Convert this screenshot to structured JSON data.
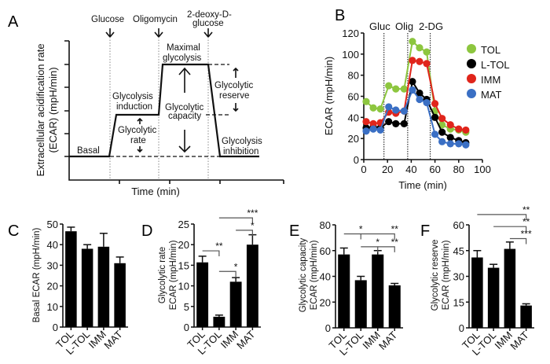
{
  "panel_labels": [
    "A",
    "B",
    "C",
    "D",
    "E",
    "F"
  ],
  "chart_data": [
    {
      "panel": "A",
      "type": "line",
      "ylabel_1": "Extracellular acidification rate",
      "ylabel_2": "(ECAR) (mpH/min)",
      "xlabel": "Time (min)",
      "injections": [
        "Glucose",
        "Oligomycin",
        "2-deoxy-D-",
        "glucose"
      ],
      "annotations": {
        "basal": "Basal",
        "induction_1": "Glycolysis",
        "induction_2": "induction",
        "rate_1": "Glycolytic",
        "rate_2": "rate",
        "max_1": "Maximal",
        "max_2": "glycolysis",
        "capacity_1": "Glycolytic",
        "capacity_2": "capacity",
        "reserve_1": "Glycolytic",
        "reserve_2": "reserve",
        "inhibition_1": "Glycolysis",
        "inhibition_2": "inhibition"
      }
    },
    {
      "panel": "B",
      "type": "line",
      "ylabel": "ECAR (mpH/min)",
      "xlabel": "Time (min)",
      "xlim": [
        0,
        100
      ],
      "ylim": [
        0,
        120
      ],
      "xticks": [
        "0",
        "20",
        "40",
        "60",
        "80",
        "100"
      ],
      "yticks": [
        "0",
        "20",
        "40",
        "60",
        "80",
        "100",
        "120"
      ],
      "injection_labels": [
        "Gluc",
        "Olig",
        "2-DG"
      ],
      "injection_times": [
        17,
        37,
        56
      ],
      "x": [
        2,
        8,
        14,
        21,
        27,
        34,
        41,
        47,
        53,
        60,
        66,
        73,
        80,
        86
      ],
      "legend_position": "top-right",
      "series": [
        {
          "name": "TOL",
          "color": "#8dc63f",
          "values": [
            55,
            49,
            48,
            70,
            67,
            67,
            112,
            106,
            102,
            46,
            33,
            29,
            28,
            26
          ]
        },
        {
          "name": "L-TOL",
          "color": "#000000",
          "values": [
            30,
            31,
            30,
            36,
            34,
            34,
            74,
            63,
            57,
            40,
            26,
            21,
            18,
            16
          ]
        },
        {
          "name": "IMM",
          "color": "#e0251b",
          "values": [
            36,
            34,
            35,
            45,
            44,
            46,
            94,
            93,
            91,
            53,
            39,
            33,
            29,
            28
          ]
        },
        {
          "name": "MAT",
          "color": "#3a6fc4",
          "values": [
            27,
            29,
            28,
            50,
            47,
            46,
            66,
            57,
            54,
            24,
            17,
            15,
            15,
            14
          ]
        }
      ]
    },
    {
      "panel": "C",
      "type": "bar",
      "ylabel": "Basal ECAR (mpH/min)",
      "categories": [
        "TOL",
        "L-TOL",
        "IMM",
        "MAT"
      ],
      "values": [
        46.5,
        38,
        39,
        31
      ],
      "errors": [
        2,
        2,
        6.5,
        3
      ],
      "ylim": [
        0,
        50
      ],
      "yticks": [
        0,
        10,
        20,
        30,
        40,
        50
      ],
      "brackets": []
    },
    {
      "panel": "D",
      "type": "bar",
      "ylabel_1": "Glycolytic rate",
      "ylabel_2": "ECAR (mpH/min)",
      "categories": [
        "TOL",
        "L-TOL",
        "IMM",
        "MAT"
      ],
      "values": [
        15.7,
        2.5,
        11,
        20
      ],
      "errors": [
        1.5,
        0.4,
        1,
        2.4
      ],
      "ylim": [
        0,
        25
      ],
      "yticks": [
        0,
        5,
        10,
        15,
        20,
        25
      ],
      "brackets": [
        {
          "from": 1,
          "to": 3,
          "y": 26.5,
          "label": "***"
        },
        {
          "from": 2,
          "to": 3,
          "y": 23.5,
          "label": "*"
        },
        {
          "from": 0,
          "to": 1,
          "y": 18.5,
          "label": "**"
        },
        {
          "from": 1,
          "to": 2,
          "y": 13.5,
          "label": "*"
        }
      ]
    },
    {
      "panel": "E",
      "type": "bar",
      "ylabel_1": "Glycolytic capacity",
      "ylabel_2": "ECAR (mpH/min)",
      "categories": [
        "TOL",
        "L-TOL",
        "IMM",
        "MAT"
      ],
      "values": [
        57,
        37,
        57,
        33
      ],
      "errors": [
        5,
        3,
        3,
        1.5
      ],
      "ylim": [
        0,
        80
      ],
      "yticks": [
        0,
        20,
        40,
        60,
        80
      ],
      "brackets": [
        {
          "from": 0,
          "to": 3,
          "y": 73,
          "label": "**",
          "mid_label": "*",
          "mid": 1
        },
        {
          "from": 1,
          "to": 2,
          "y": 63,
          "label": "*"
        },
        {
          "from": 2,
          "to": 3,
          "y": 63,
          "label": "**"
        }
      ]
    },
    {
      "panel": "F",
      "type": "bar",
      "ylabel_1": "Glycolytic reserve",
      "ylabel_2": "ECAR (mpH/min)",
      "categories": [
        "TOL",
        "L-TOL",
        "IMM",
        "MAT"
      ],
      "values": [
        41,
        35,
        46,
        13
      ],
      "errors": [
        4,
        2,
        4,
        1
      ],
      "ylim": [
        0,
        60
      ],
      "yticks": [
        0,
        15,
        30,
        45,
        60
      ],
      "brackets": [
        {
          "from": 0,
          "to": 3,
          "y": 66,
          "label": "**"
        },
        {
          "from": 1,
          "to": 3,
          "y": 59,
          "label": "**"
        },
        {
          "from": 2,
          "to": 3,
          "y": 52,
          "label": "***"
        }
      ]
    }
  ]
}
